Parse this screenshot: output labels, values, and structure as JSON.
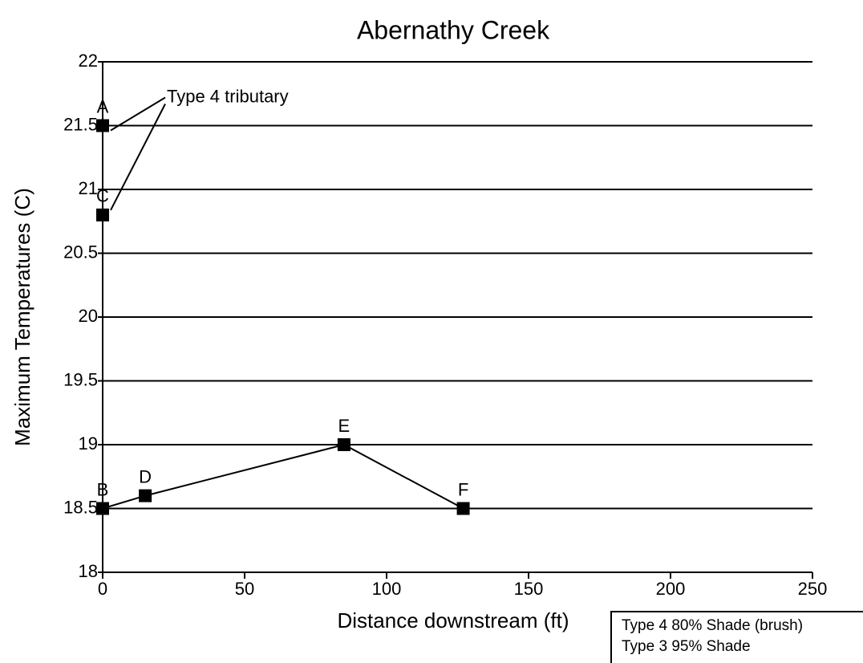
{
  "chart_data": {
    "type": "line",
    "title": "Abernathy Creek",
    "x_label": "Distance downstream (ft)",
    "y_label": "Maximum Temperatures (C)",
    "x": [
      0,
      15,
      85,
      127
    ],
    "values": [
      18.5,
      18.6,
      19,
      18.5
    ],
    "point_labels": [
      "B",
      "D",
      "E",
      "F"
    ],
    "extra_points": [
      {
        "label": "A",
        "x": 0,
        "value": 21.5
      },
      {
        "label": "C",
        "x": 0,
        "value": 20.8
      }
    ],
    "annotation": "Type 4 tributary",
    "legend_notes": [
      "Type 4 80% Shade (brush)",
      "Type 3 95% Shade"
    ],
    "color": "#000000",
    "xlim": [
      0,
      250
    ],
    "xticks": [
      0,
      50,
      100,
      150,
      200,
      250
    ],
    "ylim": [
      18,
      22
    ],
    "yticks": [
      18,
      18.5,
      19,
      19.5,
      20,
      20.5,
      21,
      21.5,
      22
    ],
    "grid": true
  }
}
